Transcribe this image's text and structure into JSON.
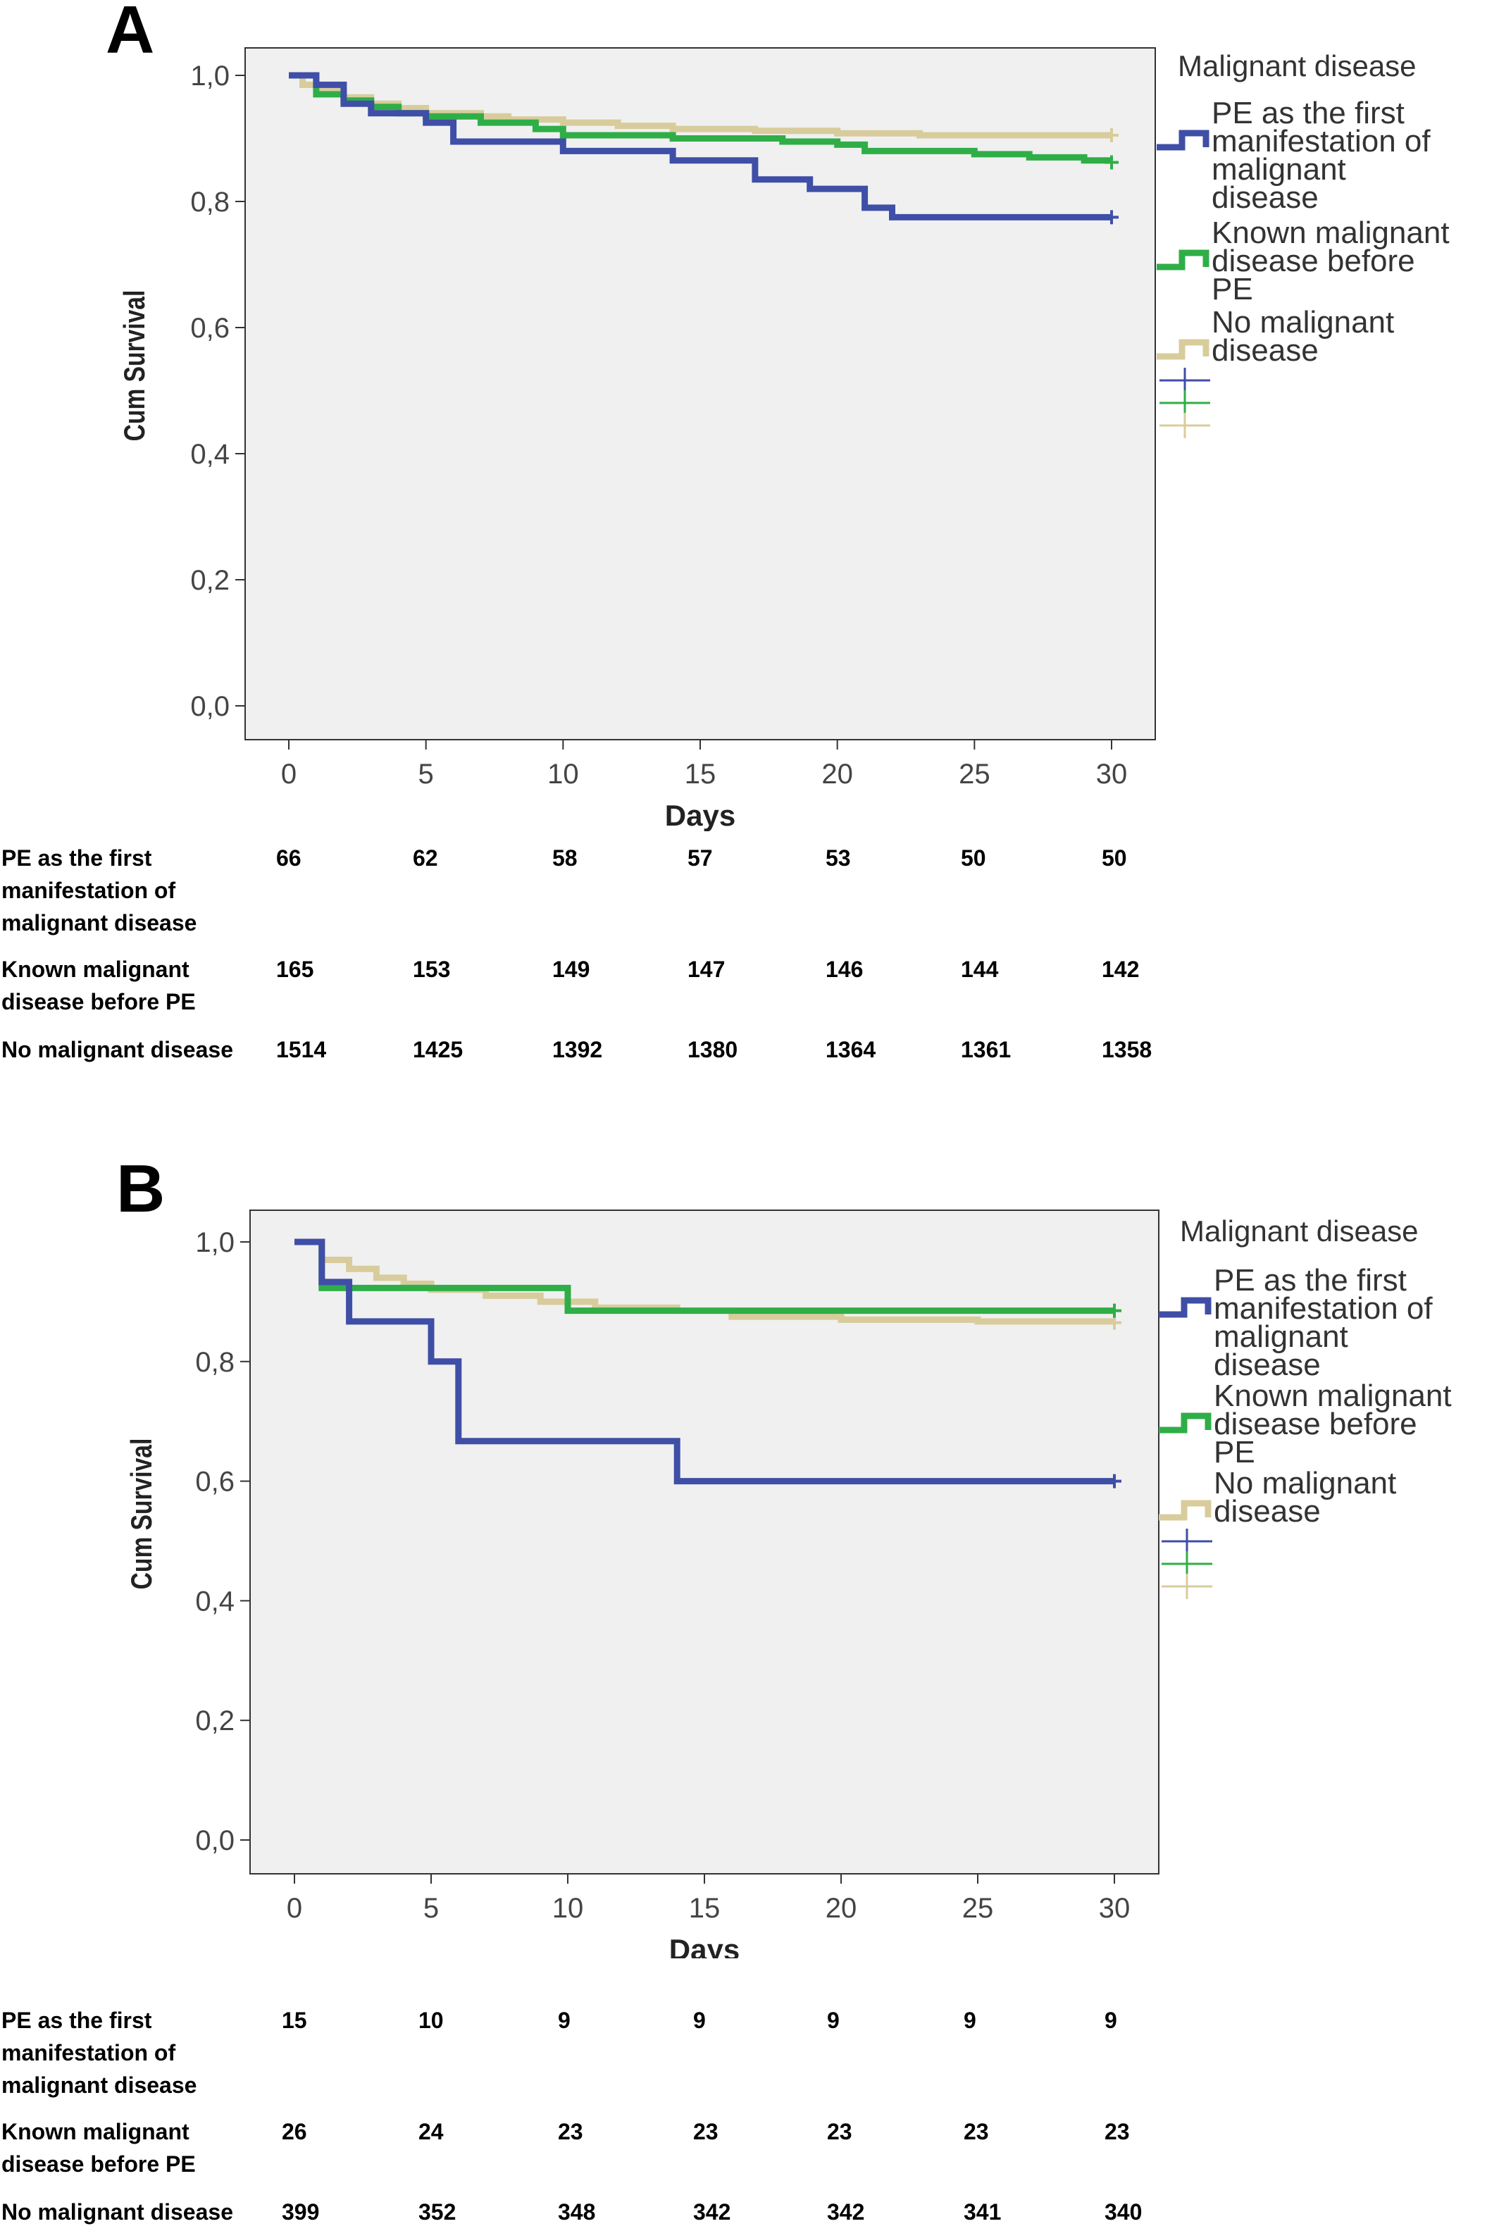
{
  "chart_data": [
    {
      "type": "line",
      "panel_letter": "A",
      "xlabel": "Days",
      "ylabel": "Cum Survival",
      "xlim": [
        0,
        30
      ],
      "ylim": [
        0,
        1
      ],
      "x_ticks": [
        "0",
        "5",
        "10",
        "15",
        "20",
        "25",
        "30"
      ],
      "y_ticks": [
        "0,0",
        "0,2",
        "0,4",
        "0,6",
        "0,8",
        "1,0"
      ],
      "legend_title": "Malignant disease",
      "legend_position": "right",
      "grid": false,
      "series": [
        {
          "name": "PE as the first manifestation of malignant disease",
          "color": "#3f4ea6",
          "points": [
            [
              0,
              1.0
            ],
            [
              1,
              1.0
            ],
            [
              1,
              0.985
            ],
            [
              2,
              0.985
            ],
            [
              2,
              0.955
            ],
            [
              3,
              0.955
            ],
            [
              3,
              0.94
            ],
            [
              5,
              0.94
            ],
            [
              5,
              0.925
            ],
            [
              6,
              0.925
            ],
            [
              6,
              0.895
            ],
            [
              10,
              0.895
            ],
            [
              10,
              0.88
            ],
            [
              14,
              0.88
            ],
            [
              14,
              0.865
            ],
            [
              17,
              0.865
            ],
            [
              17,
              0.835
            ],
            [
              19,
              0.835
            ],
            [
              19,
              0.82
            ],
            [
              21,
              0.82
            ],
            [
              21,
              0.79
            ],
            [
              22,
              0.79
            ],
            [
              22,
              0.775
            ],
            [
              30,
              0.775
            ]
          ],
          "censor": [
            30,
            0.775
          ]
        },
        {
          "name": "Known malignant disease before PE",
          "color": "#2fae47",
          "points": [
            [
              0,
              1.0
            ],
            [
              1,
              1.0
            ],
            [
              1,
              0.97
            ],
            [
              2,
              0.97
            ],
            [
              2,
              0.96
            ],
            [
              3,
              0.96
            ],
            [
              3,
              0.95
            ],
            [
              4,
              0.95
            ],
            [
              4,
              0.94
            ],
            [
              5,
              0.94
            ],
            [
              5,
              0.935
            ],
            [
              7,
              0.935
            ],
            [
              7,
              0.925
            ],
            [
              9,
              0.925
            ],
            [
              9,
              0.915
            ],
            [
              10,
              0.915
            ],
            [
              10,
              0.905
            ],
            [
              14,
              0.905
            ],
            [
              14,
              0.9
            ],
            [
              18,
              0.9
            ],
            [
              18,
              0.895
            ],
            [
              20,
              0.895
            ],
            [
              20,
              0.89
            ],
            [
              21,
              0.89
            ],
            [
              21,
              0.88
            ],
            [
              25,
              0.88
            ],
            [
              25,
              0.875
            ],
            [
              27,
              0.875
            ],
            [
              27,
              0.87
            ],
            [
              29,
              0.87
            ],
            [
              29,
              0.865
            ],
            [
              30,
              0.865
            ]
          ],
          "censor": [
            30,
            0.862
          ]
        },
        {
          "name": "No malignant disease",
          "color": "#d8cc9c",
          "points": [
            [
              0,
              1.0
            ],
            [
              0.5,
              1.0
            ],
            [
              0.5,
              0.985
            ],
            [
              1,
              0.985
            ],
            [
              1,
              0.975
            ],
            [
              2,
              0.975
            ],
            [
              2,
              0.965
            ],
            [
              3,
              0.965
            ],
            [
              3,
              0.955
            ],
            [
              4,
              0.955
            ],
            [
              4,
              0.948
            ],
            [
              5,
              0.948
            ],
            [
              5,
              0.94
            ],
            [
              7,
              0.94
            ],
            [
              7,
              0.935
            ],
            [
              8,
              0.935
            ],
            [
              8,
              0.93
            ],
            [
              10,
              0.93
            ],
            [
              10,
              0.925
            ],
            [
              12,
              0.925
            ],
            [
              12,
              0.92
            ],
            [
              14,
              0.92
            ],
            [
              14,
              0.915
            ],
            [
              17,
              0.915
            ],
            [
              17,
              0.912
            ],
            [
              20,
              0.912
            ],
            [
              20,
              0.908
            ],
            [
              23,
              0.908
            ],
            [
              23,
              0.905
            ],
            [
              30,
              0.905
            ]
          ],
          "censor": [
            30,
            0.905
          ]
        }
      ]
    },
    {
      "type": "line",
      "panel_letter": "B",
      "xlabel": "Days",
      "ylabel": "Cum Survival",
      "xlim": [
        0,
        30
      ],
      "ylim": [
        0,
        1
      ],
      "x_ticks": [
        "0",
        "5",
        "10",
        "15",
        "20",
        "25",
        "30"
      ],
      "y_ticks": [
        "0,0",
        "0,2",
        "0,4",
        "0,6",
        "0,8",
        "1,0"
      ],
      "legend_title": "Malignant disease",
      "legend_position": "right",
      "grid": false,
      "series": [
        {
          "name": "PE as the first manifestation of malignant disease",
          "color": "#3f4ea6",
          "points": [
            [
              0,
              1.0
            ],
            [
              1,
              1.0
            ],
            [
              1,
              0.933
            ],
            [
              2,
              0.933
            ],
            [
              2,
              0.867
            ],
            [
              5,
              0.867
            ],
            [
              5,
              0.8
            ],
            [
              6,
              0.8
            ],
            [
              6,
              0.667
            ],
            [
              14,
              0.667
            ],
            [
              14,
              0.6
            ],
            [
              30,
              0.6
            ]
          ],
          "censor": [
            30,
            0.6
          ]
        },
        {
          "name": "Known malignant disease before PE",
          "color": "#2fae47",
          "points": [
            [
              0,
              1.0
            ],
            [
              1,
              1.0
            ],
            [
              1,
              0.923
            ],
            [
              10,
              0.923
            ],
            [
              10,
              0.885
            ],
            [
              30,
              0.885
            ]
          ],
          "censor": [
            30,
            0.885
          ]
        },
        {
          "name": "No malignant disease",
          "color": "#d8cc9c",
          "points": [
            [
              0,
              1.0
            ],
            [
              1,
              1.0
            ],
            [
              1,
              0.97
            ],
            [
              2,
              0.97
            ],
            [
              2,
              0.955
            ],
            [
              3,
              0.955
            ],
            [
              3,
              0.94
            ],
            [
              4,
              0.94
            ],
            [
              4,
              0.93
            ],
            [
              5,
              0.93
            ],
            [
              5,
              0.92
            ],
            [
              7,
              0.92
            ],
            [
              7,
              0.91
            ],
            [
              9,
              0.91
            ],
            [
              9,
              0.9
            ],
            [
              11,
              0.9
            ],
            [
              11,
              0.89
            ],
            [
              14,
              0.89
            ],
            [
              14,
              0.885
            ],
            [
              16,
              0.885
            ],
            [
              16,
              0.875
            ],
            [
              20,
              0.875
            ],
            [
              20,
              0.87
            ],
            [
              25,
              0.87
            ],
            [
              25,
              0.867
            ],
            [
              30,
              0.867
            ]
          ],
          "censor": [
            30,
            0.865
          ]
        }
      ]
    }
  ],
  "risk_tables": [
    {
      "rows": [
        {
          "label": "PE as the first manifestation of malignant disease",
          "values": [
            "66",
            "62",
            "58",
            "57",
            "53",
            "50",
            "50"
          ]
        },
        {
          "label": "Known malignant disease before PE",
          "values": [
            "165",
            "153",
            "149",
            "147",
            "146",
            "144",
            "142"
          ]
        },
        {
          "label": "No malignant disease",
          "values": [
            "1514",
            "1425",
            "1392",
            "1380",
            "1364",
            "1361",
            "1358"
          ]
        }
      ]
    },
    {
      "rows": [
        {
          "label": "PE as the first manifestation of malignant disease",
          "values": [
            "15",
            "10",
            "9",
            "9",
            "9",
            "9",
            "9"
          ]
        },
        {
          "label": "Known malignant disease before PE",
          "values": [
            "26",
            "24",
            "23",
            "23",
            "23",
            "23",
            "23"
          ]
        },
        {
          "label": "No malignant disease",
          "values": [
            "399",
            "352",
            "348",
            "342",
            "342",
            "341",
            "340"
          ]
        }
      ]
    }
  ]
}
